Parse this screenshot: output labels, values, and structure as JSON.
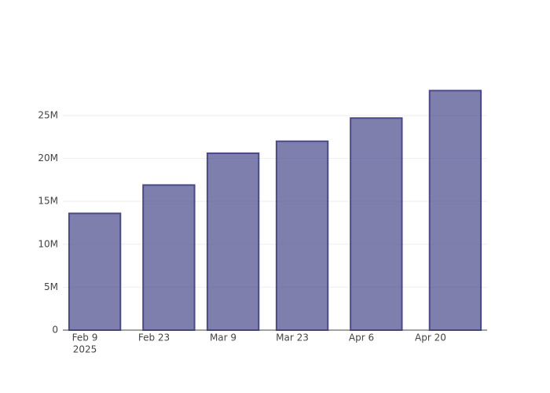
{
  "chart_data": {
    "type": "bar",
    "x": [
      "2025-02-11",
      "2025-02-26",
      "2025-03-11",
      "2025-03-25",
      "2025-04-09",
      "2025-04-25"
    ],
    "values": [
      13600000,
      16900000,
      20600000,
      22000000,
      24700000,
      27900000
    ],
    "color": "rgba(72,72,140,0.7)",
    "line_color": "#4a4a8a",
    "xlim": [
      "2025-02-04T13:00",
      "2025-05-01T11:00"
    ],
    "xticks": [
      {
        "value": "2025-02-09",
        "label": "Feb 9",
        "sublabel": "2025"
      },
      {
        "value": "2025-02-23",
        "label": "Feb 23"
      },
      {
        "value": "2025-03-09",
        "label": "Mar 9"
      },
      {
        "value": "2025-03-23",
        "label": "Mar 23"
      },
      {
        "value": "2025-04-06",
        "label": "Apr 6"
      },
      {
        "value": "2025-04-20",
        "label": "Apr 20"
      }
    ],
    "ylim": [
      0,
      29300000
    ],
    "yticks": [
      0,
      {
        "value": 5000000,
        "label": "5M"
      },
      {
        "value": 10000000,
        "label": "10M"
      },
      {
        "value": 15000000,
        "label": "15M"
      },
      {
        "value": 20000000,
        "label": "20M"
      },
      {
        "value": 25000000,
        "label": "25M"
      }
    ],
    "grid": true
  }
}
